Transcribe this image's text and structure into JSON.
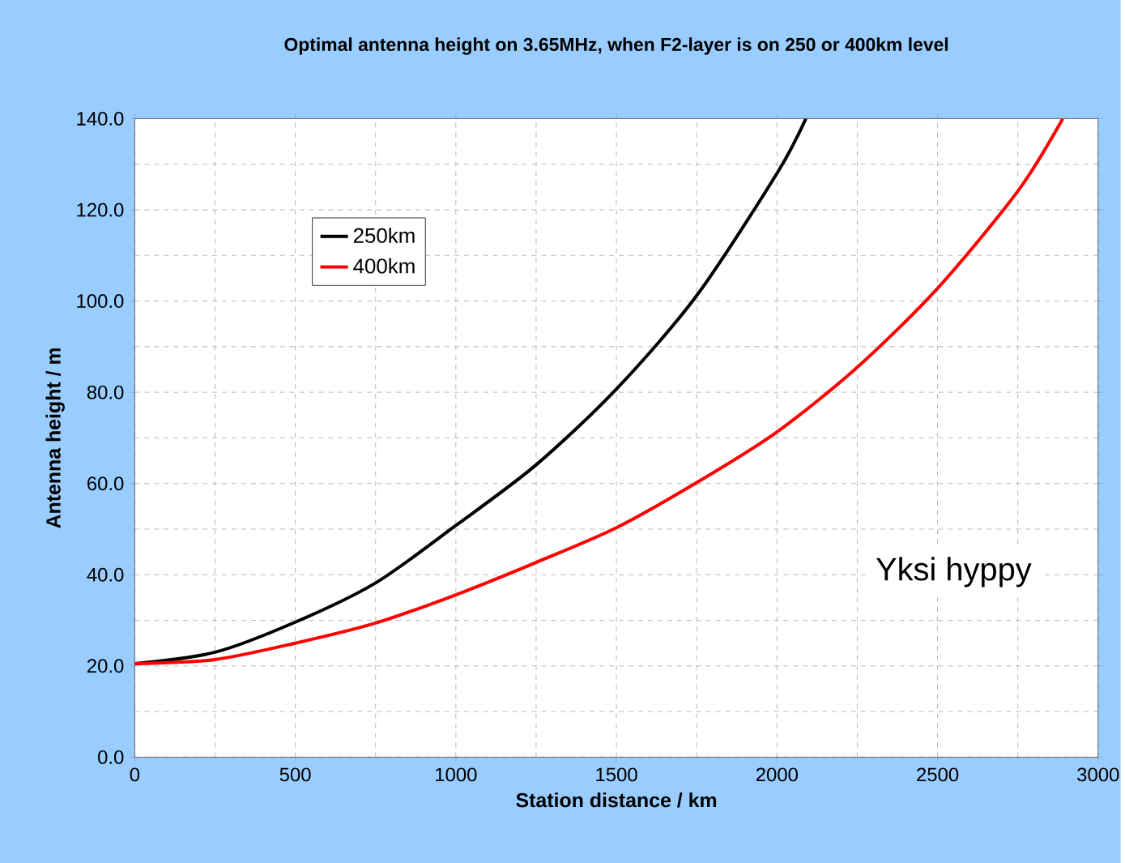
{
  "chart_data": {
    "type": "line",
    "title": "Optimal antenna height on 3.65MHz, when F2-layer is on 250 or 400km level",
    "xlabel": "Station distance  / km",
    "ylabel": "Antenna height  / m",
    "series": [
      {
        "name": "250km",
        "color": "#000000",
        "x": [
          0,
          250,
          500,
          750,
          1000,
          1250,
          1500,
          1750,
          2000,
          2090
        ],
        "values": [
          20.5,
          23.0,
          29.6,
          38.2,
          50.8,
          64.1,
          80.7,
          101.2,
          128.0,
          140.0
        ]
      },
      {
        "name": "400km",
        "color": "#ff0000",
        "x": [
          0,
          250,
          500,
          750,
          1000,
          1250,
          1500,
          1750,
          2000,
          2250,
          2500,
          2750,
          2890
        ],
        "values": [
          20.5,
          21.4,
          25.0,
          29.4,
          35.6,
          42.7,
          50.3,
          60.2,
          71.3,
          85.5,
          102.8,
          124.1,
          140.0
        ]
      }
    ],
    "xlim": [
      0,
      3000
    ],
    "ylim": [
      0,
      140
    ],
    "xticks": [
      0,
      500,
      1000,
      1500,
      2000,
      2500,
      3000
    ],
    "yticks": [
      {
        "value": 0,
        "label": "0.0"
      },
      {
        "value": 20,
        "label": "20.0"
      },
      {
        "value": 40,
        "label": "40.0"
      },
      {
        "value": 60,
        "label": "60.0"
      },
      {
        "value": 80,
        "label": "80.0"
      },
      {
        "value": 100,
        "label": "100.0"
      },
      {
        "value": 120,
        "label": "120.0"
      },
      {
        "value": 140,
        "label": "140.0"
      }
    ],
    "annotations": [
      "Yksi hyppy"
    ],
    "grid": true,
    "legend": "top left",
    "marker": "none",
    "line_style": "solid"
  }
}
